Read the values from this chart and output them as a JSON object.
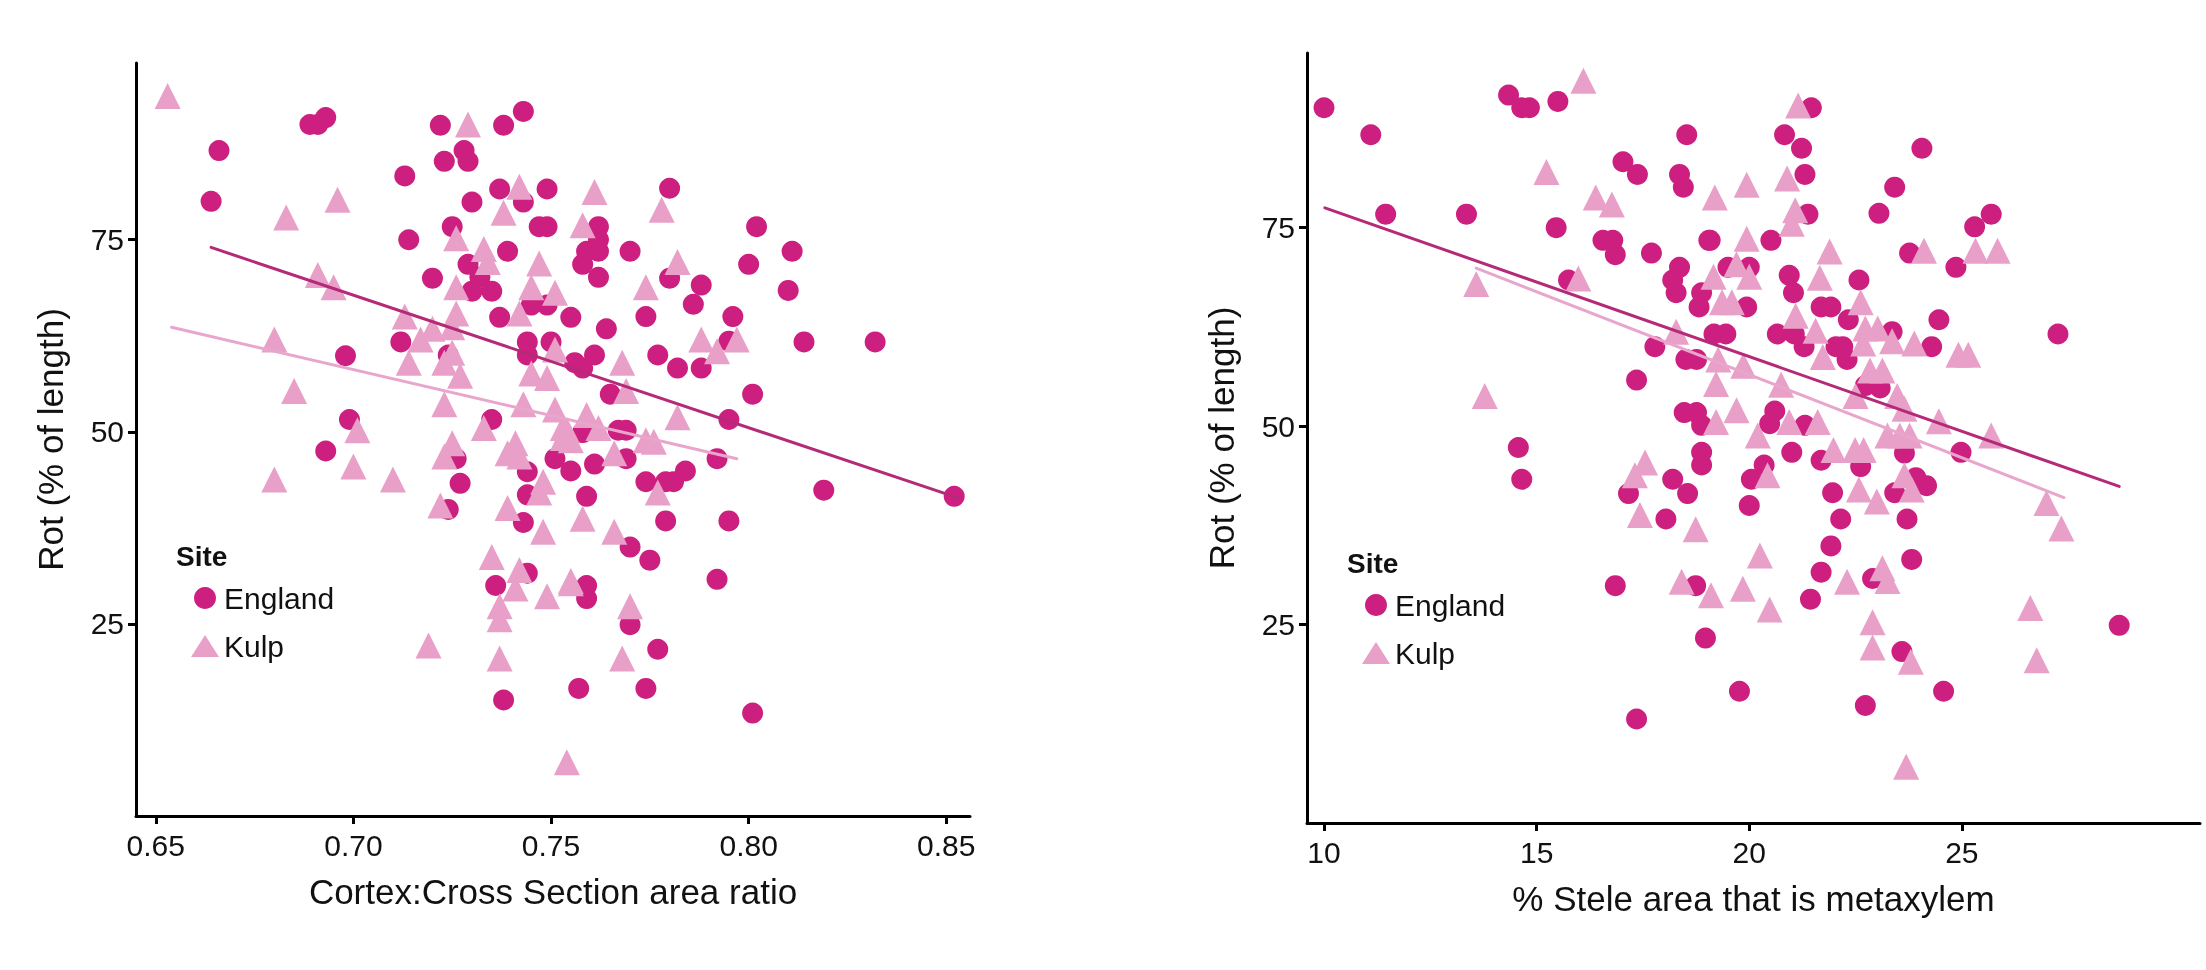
{
  "chart_data": [
    {
      "type": "scatter",
      "xlabel": "Cortex:Cross Section area ratio",
      "ylabel": "Rot (% of length)",
      "legend_title": "Site",
      "legend": "bottom left",
      "grid": false,
      "xlim": [
        0.645,
        0.856
      ],
      "ylim": [
        0,
        98
      ],
      "xticks": [
        0.65,
        {
          "value": 0.7,
          "label": "0.70"
        },
        0.75,
        {
          "value": 0.8,
          "label": "0.80"
        },
        0.85
      ],
      "yticks": [
        25,
        50,
        75
      ],
      "series": [
        {
          "name": "England",
          "type": "scatter",
          "marker": "circle",
          "color": "#cc1f7f",
          "x": [
            0.666,
            0.664,
            0.689,
            0.691,
            0.693,
            0.722,
            0.738,
            0.743,
            0.728,
            0.729,
            0.723,
            0.713,
            0.737,
            0.743,
            0.749,
            0.73,
            0.725,
            0.714,
            0.747,
            0.749,
            0.739,
            0.729,
            0.732,
            0.735,
            0.73,
            0.72,
            0.737,
            0.745,
            0.749,
            0.755,
            0.712,
            0.724,
            0.744,
            0.744,
            0.75,
            0.756,
            0.698,
            0.699,
            0.693,
            0.735,
            0.751,
            0.755,
            0.726,
            0.727,
            0.724,
            0.744,
            0.744,
            0.743,
            0.736,
            0.744,
            0.738,
            0.78,
            0.762,
            0.759,
            0.762,
            0.758,
            0.762,
            0.77,
            0.762,
            0.802,
            0.8,
            0.811,
            0.81,
            0.788,
            0.786,
            0.78,
            0.764,
            0.774,
            0.796,
            0.795,
            0.814,
            0.832,
            0.758,
            0.761,
            0.777,
            0.782,
            0.788,
            0.765,
            0.801,
            0.795,
            0.767,
            0.769,
            0.758,
            0.761,
            0.769,
            0.792,
            0.774,
            0.779,
            0.781,
            0.784,
            0.759,
            0.819,
            0.852,
            0.779,
            0.795,
            0.77,
            0.775,
            0.792,
            0.759,
            0.759,
            0.77,
            0.777,
            0.757,
            0.774,
            0.801
          ],
          "values": [
            86.6,
            80.0,
            90.0,
            90.0,
            90.9,
            89.9,
            89.9,
            91.7,
            86.6,
            85.2,
            85.2,
            83.3,
            81.6,
            79.9,
            81.6,
            79.9,
            76.7,
            75.0,
            76.7,
            76.7,
            73.5,
            71.8,
            70.1,
            68.3,
            68.3,
            70.0,
            64.9,
            66.5,
            66.5,
            64.9,
            61.7,
            60.0,
            61.7,
            60.0,
            61.7,
            59.0,
            59.9,
            51.6,
            47.5,
            51.6,
            46.5,
            44.9,
            46.5,
            43.3,
            39.9,
            44.8,
            41.8,
            38.2,
            30.0,
            31.6,
            15.1,
            81.7,
            76.7,
            73.5,
            73.5,
            71.8,
            75.0,
            73.5,
            70.1,
            76.7,
            71.8,
            73.5,
            68.4,
            69.1,
            66.6,
            70.0,
            63.4,
            65.0,
            65.0,
            61.8,
            61.7,
            61.7,
            58.3,
            60.0,
            60.0,
            58.3,
            58.3,
            54.9,
            54.9,
            51.6,
            50.2,
            50.2,
            49.9,
            45.8,
            46.5,
            46.5,
            43.5,
            43.5,
            43.5,
            44.9,
            41.6,
            42.4,
            41.6,
            38.4,
            38.4,
            35.0,
            33.3,
            30.8,
            30.0,
            28.3,
            24.9,
            21.7,
            16.6,
            16.6,
            13.4
          ]
        },
        {
          "name": "Kulp",
          "type": "scatter",
          "marker": "triangle",
          "color": "#e8a0c8",
          "x": [
            0.653,
            0.683,
            0.696,
            0.691,
            0.695,
            0.68,
            0.685,
            0.701,
            0.7,
            0.68,
            0.71,
            0.713,
            0.717,
            0.72,
            0.726,
            0.725,
            0.714,
            0.723,
            0.725,
            0.727,
            0.723,
            0.726,
            0.733,
            0.734,
            0.726,
            0.729,
            0.742,
            0.738,
            0.747,
            0.745,
            0.742,
            0.751,
            0.745,
            0.749,
            0.751,
            0.743,
            0.733,
            0.725,
            0.723,
            0.741,
            0.742,
            0.739,
            0.748,
            0.747,
            0.722,
            0.739,
            0.748,
            0.735,
            0.742,
            0.741,
            0.737,
            0.737,
            0.749,
            0.755,
            0.719,
            0.737,
            0.751,
            0.753,
            0.753,
            0.761,
            0.778,
            0.758,
            0.782,
            0.774,
            0.788,
            0.792,
            0.797,
            0.768,
            0.769,
            0.759,
            0.762,
            0.754,
            0.755,
            0.766,
            0.774,
            0.776,
            0.782,
            0.777,
            0.758,
            0.766,
            0.755,
            0.77,
            0.768,
            0.754
          ],
          "values": [
            93.7,
            77.9,
            80.2,
            70.4,
            68.8,
            62.0,
            55.3,
            50.2,
            45.5,
            43.8,
            43.8,
            65.0,
            62.0,
            63.4,
            65.4,
            63.6,
            59.0,
            59.0,
            60.3,
            57.3,
            53.6,
            75.2,
            73.8,
            72.1,
            68.8,
            90.0,
            81.9,
            78.5,
            71.9,
            68.8,
            65.4,
            68.1,
            57.6,
            57.0,
            60.7,
            53.6,
            50.5,
            48.5,
            46.8,
            48.5,
            46.8,
            47.2,
            43.5,
            42.1,
            40.4,
            40.1,
            37.0,
            33.7,
            32.0,
            29.6,
            27.3,
            25.6,
            28.6,
            30.3,
            22.2,
            20.5,
            52.9,
            50.5,
            49.2,
            81.2,
            78.9,
            76.9,
            72.1,
            68.8,
            62.0,
            60.5,
            62.0,
            59.0,
            55.3,
            52.2,
            50.5,
            50.2,
            48.9,
            47.2,
            48.9,
            48.7,
            51.9,
            42.1,
            38.7,
            37.0,
            30.6,
            27.3,
            20.5,
            7.0
          ]
        },
        {
          "type": "line",
          "color": "#b52a78",
          "x": [
            0.664,
            0.853
          ],
          "values": [
            74.0,
            41.4
          ]
        },
        {
          "type": "line",
          "color": "#e9a6cc",
          "x": [
            0.654,
            0.797
          ],
          "values": [
            63.6,
            46.5
          ]
        }
      ]
    },
    {
      "type": "scatter",
      "xlabel": "% Stele area that is metaxylem",
      "ylabel": "Rot (% of length)",
      "legend_title": "Site",
      "legend": "bottom left",
      "grid": false,
      "xlim": [
        9.6,
        30.6
      ],
      "ylim": [
        0,
        97
      ],
      "xticks": [
        10,
        15,
        20,
        25
      ],
      "yticks": [
        25,
        50,
        75
      ],
      "series": [
        {
          "name": "England",
          "type": "scatter",
          "marker": "circle",
          "color": "#cc1f7f",
          "x": [
            10.0,
            11.1,
            11.45,
            13.35,
            14.34,
            14.65,
            14.83,
            15.5,
            15.46,
            18.53,
            17.03,
            17.37,
            18.36,
            18.45,
            16.56,
            16.79,
            16.85,
            17.7,
            18.36,
            18.2,
            18.28,
            18.88,
            18.82,
            19.05,
            15.75,
            17.78,
            18.51,
            18.76,
            17.35,
            18.47,
            18.76,
            18.88,
            18.88,
            18.88,
            14.57,
            14.65,
            17.16,
            18.2,
            18.55,
            18.04,
            16.85,
            18.74,
            18.97,
            17.35,
            19.17,
            21.46,
            20.83,
            21.23,
            21.31,
            21.38,
            20.51,
            20.0,
            19.5,
            19.08,
            20.94,
            21.04,
            19.94,
            19.45,
            20.66,
            21.06,
            21.29,
            21.69,
            21.92,
            22.33,
            22.58,
            22.04,
            22.3,
            22.2,
            23.36,
            24.29,
            24.46,
            23.05,
            23.42,
            24.06,
            23.77,
            24.86,
            25.3,
            25.69,
            27.26,
            22.73,
            23.08,
            20.6,
            20.48,
            21.31,
            21.0,
            21.69,
            20.35,
            20.05,
            20.0,
            22.62,
            23.65,
            21.96,
            23.42,
            24.17,
            23.92,
            22.15,
            23.71,
            21.92,
            23.82,
            21.69,
            22.9,
            21.44,
            23.59,
            24.98,
            19.77,
            22.73,
            24.57,
            28.7
          ],
          "values": [
            90.1,
            86.7,
            76.7,
            76.7,
            91.7,
            90.1,
            90.1,
            90.9,
            75.0,
            86.7,
            83.3,
            81.7,
            81.7,
            80.1,
            73.4,
            73.4,
            71.6,
            71.8,
            70.0,
            68.4,
            66.8,
            66.8,
            65.0,
            73.4,
            68.4,
            60.0,
            58.4,
            58.4,
            55.8,
            51.7,
            51.7,
            50.1,
            46.7,
            45.1,
            47.3,
            43.3,
            41.5,
            43.3,
            41.5,
            38.3,
            29.9,
            29.9,
            23.3,
            13.1,
            61.6,
            90.1,
            86.7,
            85.0,
            81.7,
            76.7,
            73.4,
            70.0,
            70.0,
            73.4,
            69.0,
            66.8,
            65.0,
            61.6,
            61.6,
            61.6,
            60.0,
            65.0,
            65.0,
            63.4,
            68.4,
            60.0,
            58.4,
            60.0,
            61.9,
            60.0,
            63.4,
            76.8,
            80.1,
            85.0,
            71.8,
            70.0,
            75.1,
            76.7,
            61.6,
            55.1,
            54.8,
            51.9,
            50.3,
            50.1,
            46.7,
            45.7,
            45.1,
            43.3,
            40.0,
            44.9,
            46.6,
            41.6,
            41.6,
            42.5,
            43.5,
            38.3,
            38.3,
            34.9,
            33.2,
            31.6,
            30.8,
            28.2,
            21.6,
            46.7,
            16.6,
            14.8,
            16.6,
            24.9
          ]
        },
        {
          "name": "Kulp",
          "type": "scatter",
          "marker": "triangle",
          "color": "#e8a0c8",
          "x": [
            16.1,
            15.23,
            16.39,
            16.77,
            15.98,
            13.58,
            13.78,
            18.28,
            17.55,
            17.31,
            17.43,
            18.74,
            18.41,
            21.15,
            20.89,
            19.94,
            19.19,
            21.08,
            21.0,
            19.94,
            21.89,
            19.7,
            20.0,
            19.16,
            21.66,
            19.36,
            19.59,
            21.09,
            21.56,
            22.62,
            22.73,
            23.02,
            23.36,
            23.88,
            21.73,
            22.68,
            22.84,
            23.13,
            19.27,
            19.86,
            19.22,
            20.75,
            22.5,
            23.48,
            23.65,
            24.92,
            25.15,
            25.32,
            25.84,
            24.11,
            19.7,
            19.22,
            20.2,
            20.94,
            21.61,
            21.98,
            22.49,
            22.69,
            23.25,
            23.54,
            23.77,
            24.46,
            25.69,
            23.65,
            23.82,
            20.43,
            22.58,
            23.0,
            20.25,
            22.3,
            23.13,
            23.25,
            19.1,
            19.85,
            20.48,
            22.9,
            22.9,
            23.8,
            26.99,
            27.34,
            26.61,
            26.76,
            23.69
          ],
          "values": [
            93.5,
            82.0,
            78.8,
            77.9,
            68.6,
            67.9,
            53.8,
            61.9,
            45.4,
            43.8,
            38.8,
            37.0,
            30.4,
            90.4,
            81.2,
            80.4,
            78.8,
            77.2,
            75.5,
            73.6,
            72.0,
            70.4,
            68.8,
            68.8,
            68.7,
            65.6,
            65.6,
            63.9,
            62.0,
            65.6,
            62.3,
            62.3,
            60.7,
            60.4,
            58.7,
            60.4,
            57.0,
            57.0,
            58.4,
            57.6,
            55.3,
            55.2,
            53.8,
            53.8,
            52.2,
            59.0,
            59.0,
            72.1,
            72.1,
            72.1,
            52.0,
            50.5,
            48.8,
            50.5,
            50.5,
            47.0,
            47.0,
            47.0,
            48.8,
            48.8,
            48.8,
            50.6,
            48.8,
            43.8,
            42.0,
            43.8,
            42.0,
            40.5,
            33.7,
            30.4,
            32.1,
            30.5,
            28.7,
            29.5,
            26.9,
            25.3,
            22.1,
            20.3,
            40.3,
            37.1,
            27.1,
            20.5,
            7.1
          ]
        },
        {
          "type": "line",
          "color": "#b52a78",
          "x": [
            10.02,
            28.7
          ],
          "values": [
            77.5,
            42.4
          ]
        },
        {
          "type": "line",
          "color": "#e9a6cc",
          "x": [
            13.58,
            27.4
          ],
          "values": [
            69.9,
            41.0
          ]
        }
      ]
    }
  ]
}
